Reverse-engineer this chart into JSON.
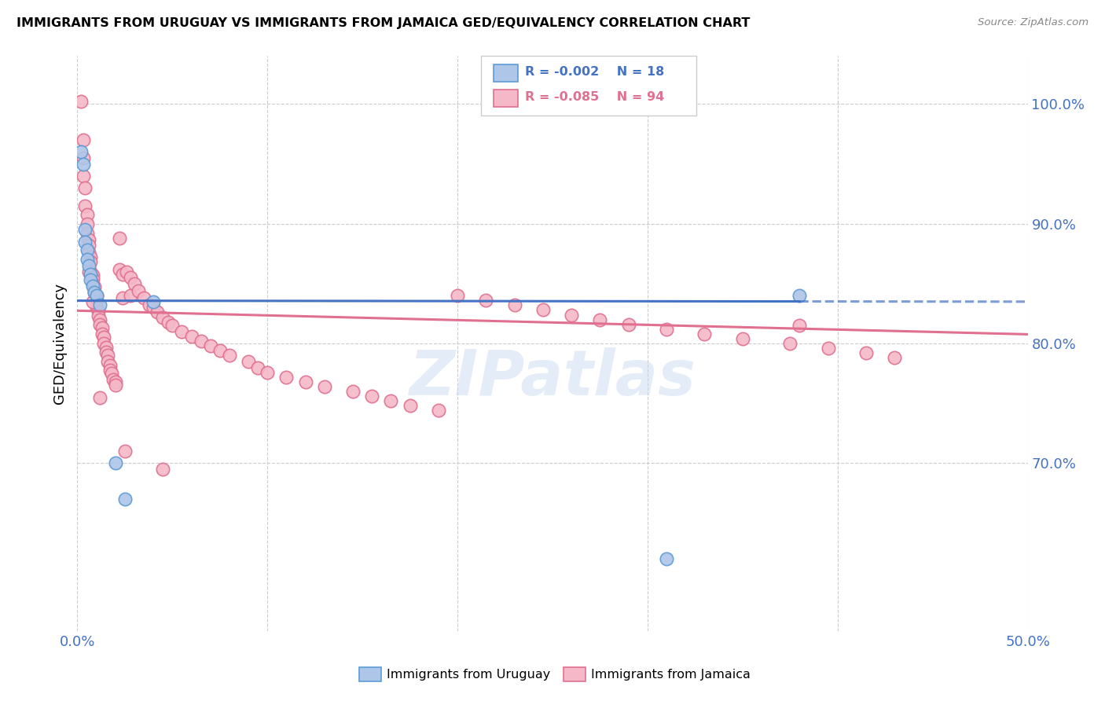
{
  "title": "IMMIGRANTS FROM URUGUAY VS IMMIGRANTS FROM JAMAICA GED/EQUIVALENCY CORRELATION CHART",
  "source": "Source: ZipAtlas.com",
  "ylabel": "GED/Equivalency",
  "legend_r_uruguay": "R = -0.002",
  "legend_n_uruguay": "N = 18",
  "legend_r_jamaica": "R = -0.085",
  "legend_n_jamaica": "N = 94",
  "color_uruguay_fill": "#aec6e8",
  "color_uruguay_edge": "#5b9bd5",
  "color_jamaica_fill": "#f5b8c8",
  "color_jamaica_edge": "#e07090",
  "color_uruguay_line": "#4472c4",
  "color_jamaica_line": "#e07090",
  "watermark": "ZIPatlas",
  "xlim": [
    0.0,
    0.5
  ],
  "ylim": [
    0.56,
    1.04
  ],
  "ytick_vals": [
    0.7,
    0.8,
    0.9,
    1.0
  ],
  "ytick_labels": [
    "70.0%",
    "80.0%",
    "90.0%",
    "100.0%"
  ],
  "xtick_labels": [
    "0.0%",
    "",
    "",
    "",
    "",
    "50.0%"
  ],
  "grid_yticks": [
    0.7,
    0.8,
    0.9,
    1.0
  ],
  "grid_xticks": [
    0.0,
    0.1,
    0.2,
    0.3,
    0.4,
    0.5
  ],
  "uru_x": [
    0.002,
    0.003,
    0.004,
    0.004,
    0.005,
    0.005,
    0.006,
    0.007,
    0.007,
    0.008,
    0.009,
    0.01,
    0.012,
    0.02,
    0.025,
    0.04,
    0.38,
    0.31
  ],
  "uru_y": [
    0.96,
    0.95,
    0.895,
    0.885,
    0.878,
    0.87,
    0.865,
    0.858,
    0.853,
    0.848,
    0.843,
    0.84,
    0.832,
    0.7,
    0.67,
    0.835,
    0.84,
    0.62
  ],
  "jam_x": [
    0.002,
    0.003,
    0.003,
    0.004,
    0.004,
    0.005,
    0.005,
    0.005,
    0.006,
    0.006,
    0.006,
    0.007,
    0.007,
    0.007,
    0.008,
    0.008,
    0.008,
    0.009,
    0.009,
    0.01,
    0.01,
    0.01,
    0.011,
    0.011,
    0.012,
    0.012,
    0.013,
    0.013,
    0.014,
    0.014,
    0.015,
    0.015,
    0.016,
    0.016,
    0.017,
    0.017,
    0.018,
    0.019,
    0.02,
    0.02,
    0.022,
    0.022,
    0.024,
    0.024,
    0.026,
    0.028,
    0.028,
    0.03,
    0.032,
    0.035,
    0.038,
    0.04,
    0.042,
    0.045,
    0.048,
    0.05,
    0.055,
    0.06,
    0.065,
    0.07,
    0.075,
    0.08,
    0.09,
    0.095,
    0.1,
    0.11,
    0.12,
    0.13,
    0.145,
    0.155,
    0.165,
    0.175,
    0.19,
    0.2,
    0.215,
    0.23,
    0.245,
    0.26,
    0.275,
    0.29,
    0.31,
    0.33,
    0.35,
    0.375,
    0.395,
    0.415,
    0.43,
    0.003,
    0.006,
    0.008,
    0.012,
    0.025,
    0.045,
    0.38
  ],
  "jam_y": [
    1.002,
    0.97,
    0.94,
    0.93,
    0.915,
    0.908,
    0.9,
    0.892,
    0.887,
    0.882,
    0.876,
    0.872,
    0.868,
    0.86,
    0.857,
    0.854,
    0.85,
    0.847,
    0.843,
    0.84,
    0.836,
    0.83,
    0.827,
    0.823,
    0.82,
    0.816,
    0.813,
    0.808,
    0.805,
    0.8,
    0.797,
    0.793,
    0.79,
    0.785,
    0.782,
    0.778,
    0.775,
    0.77,
    0.768,
    0.765,
    0.888,
    0.862,
    0.858,
    0.838,
    0.86,
    0.855,
    0.84,
    0.85,
    0.844,
    0.838,
    0.832,
    0.83,
    0.826,
    0.822,
    0.818,
    0.815,
    0.81,
    0.806,
    0.802,
    0.798,
    0.794,
    0.79,
    0.785,
    0.78,
    0.776,
    0.772,
    0.768,
    0.764,
    0.76,
    0.756,
    0.752,
    0.748,
    0.744,
    0.84,
    0.836,
    0.832,
    0.828,
    0.824,
    0.82,
    0.816,
    0.812,
    0.808,
    0.804,
    0.8,
    0.796,
    0.792,
    0.788,
    0.955,
    0.86,
    0.835,
    0.755,
    0.71,
    0.695,
    0.815
  ]
}
